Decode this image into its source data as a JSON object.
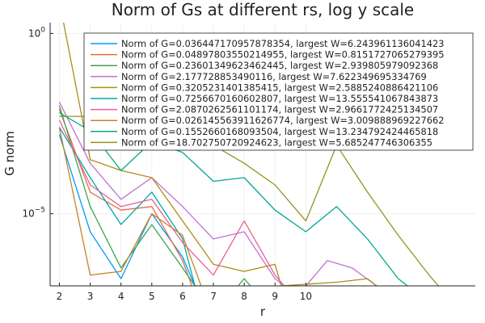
{
  "chart_data": {
    "type": "line",
    "title": "Norm of Gs at different rs, log y scale",
    "xlabel": "r",
    "ylabel": "G norm",
    "yscale": "log",
    "xlim": [
      1.7,
      15.5
    ],
    "ylim_log10": [
      -7.0,
      0.3
    ],
    "x_ticks": [
      {
        "v": 2,
        "label": "2"
      },
      {
        "v": 3,
        "label": "3"
      },
      {
        "v": 4,
        "label": "4"
      },
      {
        "v": 5,
        "label": "5"
      },
      {
        "v": 6,
        "label": "6"
      },
      {
        "v": 7,
        "label": "7"
      },
      {
        "v": 8,
        "label": "8"
      },
      {
        "v": 9,
        "label": "9"
      },
      {
        "v": 10,
        "label": "10"
      }
    ],
    "y_ticks": [
      {
        "exp": 0,
        "base": "10",
        "sup": "0"
      },
      {
        "exp": -5,
        "base": "10",
        "sup": "−5"
      }
    ],
    "grid": true,
    "legend_position": "top-right",
    "series": [
      {
        "name": "Norm of G=0.036447170957878354, largest W=6.243961136041423",
        "color": "#009AFA",
        "points": [
          [
            2,
            -2.8
          ],
          [
            3,
            -5.5
          ],
          [
            4,
            -6.8
          ],
          [
            5,
            -5.0
          ],
          [
            6,
            -6.2
          ],
          [
            6.4,
            -7.0
          ]
        ]
      },
      {
        "name": "Norm of G=0.04897803550214955, largest W=0.8151727065279395",
        "color": "#E36F47",
        "points": [
          [
            2,
            -2.1
          ],
          [
            3,
            -4.4
          ],
          [
            4,
            -4.9
          ],
          [
            5,
            -4.8
          ],
          [
            6,
            -6.3
          ],
          [
            6.3,
            -7.0
          ]
        ]
      },
      {
        "name": "Norm of G=0.23601349623462445, largest W=2.939805979092368",
        "color": "#3EA44E",
        "points": [
          [
            2,
            -2.0
          ],
          [
            3,
            -4.8
          ],
          [
            4,
            -6.5
          ],
          [
            5,
            -5.3
          ],
          [
            6,
            -6.5
          ],
          [
            6.4,
            -7.0
          ],
          [
            7.8,
            -7.0
          ],
          [
            8,
            -6.8
          ],
          [
            8.2,
            -7.0
          ]
        ]
      },
      {
        "name": "Norm of G=2.177728853490116, largest W=7.622349695334769",
        "color": "#C271D2",
        "points": [
          [
            2,
            -1.9
          ],
          [
            3,
            -3.6
          ],
          [
            4,
            -4.6
          ],
          [
            5,
            -4.0
          ],
          [
            6,
            -4.8
          ],
          [
            7,
            -5.7
          ],
          [
            8,
            -5.5
          ],
          [
            9,
            -6.8
          ],
          [
            9.3,
            -7.0
          ],
          [
            10,
            -7.0
          ],
          [
            10.7,
            -6.3
          ],
          [
            11.5,
            -6.5
          ],
          [
            12.3,
            -7.0
          ]
        ]
      },
      {
        "name": "Norm of G=0.3205231401385415, largest W=2.5885240886421106",
        "color": "#AC8D18",
        "points": [
          [
            2,
            0.9
          ],
          [
            3,
            -3.5
          ],
          [
            4,
            -3.8
          ],
          [
            5,
            -4.0
          ],
          [
            6,
            -5.2
          ],
          [
            7,
            -6.4
          ],
          [
            8,
            -6.6
          ],
          [
            9,
            -6.4
          ],
          [
            9.2,
            -7.0
          ],
          [
            11,
            -6.9
          ],
          [
            12,
            -6.8
          ],
          [
            12.3,
            -7.0
          ]
        ]
      },
      {
        "name": "Norm of G=0.7256670160602807, largest W=13.555541067843873",
        "color": "#00A9AD",
        "points": [
          [
            2,
            -2.6
          ],
          [
            3,
            -4.0
          ],
          [
            4,
            -5.3
          ],
          [
            5,
            -4.4
          ],
          [
            6,
            -5.7
          ],
          [
            6.4,
            -7.0
          ]
        ]
      },
      {
        "name": "Norm of G=2.0870262561101174, largest W=2.9661772425134507",
        "color": "#ED5E93",
        "points": [
          [
            2,
            -2.4
          ],
          [
            3,
            -4.2
          ],
          [
            4,
            -4.8
          ],
          [
            5,
            -4.6
          ],
          [
            6,
            -5.8
          ],
          [
            7,
            -6.7
          ],
          [
            8,
            -5.2
          ],
          [
            9,
            -6.7
          ],
          [
            9.3,
            -7.0
          ]
        ]
      },
      {
        "name": "Norm of G=0.026145563911626774, largest W=3.009888969227662",
        "color": "#C68225",
        "points": [
          [
            2,
            -2.6
          ],
          [
            3,
            -6.7
          ],
          [
            4,
            -6.6
          ],
          [
            5,
            -5.0
          ],
          [
            6,
            -5.6
          ],
          [
            6.6,
            -7.0
          ]
        ]
      },
      {
        "name": "Norm of G=0.1552660168093504, largest W=13.234792424465818",
        "color": "#00A98D",
        "points": [
          [
            2,
            -2.2
          ],
          [
            3,
            -2.7
          ],
          [
            4,
            -3.8
          ],
          [
            5,
            -3.0
          ],
          [
            6,
            -3.3
          ],
          [
            7,
            -4.1
          ],
          [
            8,
            -4.0
          ],
          [
            9,
            -4.9
          ],
          [
            10,
            -5.5
          ],
          [
            11,
            -4.8
          ],
          [
            12,
            -5.7
          ],
          [
            13,
            -6.8
          ],
          [
            13.3,
            -7.0
          ]
        ]
      },
      {
        "name": "Norm of G=18.702750720924623, largest W=5.685247746306355",
        "color": "#8E971D",
        "points": [
          [
            2,
            -2.3
          ],
          [
            3,
            -2.3
          ],
          [
            4,
            -2.7
          ],
          [
            5,
            -3.0
          ],
          [
            6,
            -2.7
          ],
          [
            7,
            -3.1
          ],
          [
            8,
            -3.6
          ],
          [
            9,
            -4.2
          ],
          [
            10,
            -5.2
          ],
          [
            11,
            -3.1
          ],
          [
            12,
            -4.4
          ],
          [
            13,
            -5.6
          ],
          [
            14,
            -6.7
          ],
          [
            14.3,
            -7.0
          ]
        ]
      }
    ]
  }
}
